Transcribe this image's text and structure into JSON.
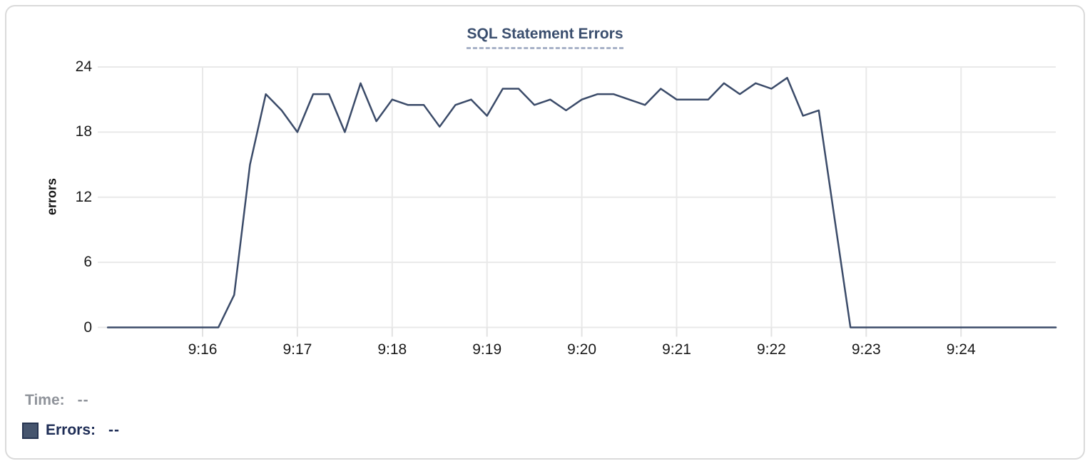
{
  "chart": {
    "title": "SQL Statement Errors",
    "y_axis_label": "errors"
  },
  "legend": {
    "time_label": "Time:",
    "time_value": "--",
    "errors_label": "Errors:",
    "errors_value": "--"
  },
  "colors": {
    "line": "#3b4b69",
    "title": "#3a4e6e",
    "title_underline": "#a8b2c8",
    "gridline": "#e9e9e9",
    "axis_tick": "#e2e2e2",
    "legend_swatch": "#46556e",
    "legend_time_text": "#8f939a",
    "legend_errors_text": "#1d2c55"
  },
  "chart_data": {
    "type": "line",
    "title": "SQL Statement Errors",
    "xlabel": "",
    "ylabel": "errors",
    "ylim": [
      0,
      24
    ],
    "y_ticks": [
      0,
      6,
      12,
      18,
      24
    ],
    "x_tick_labels": [
      "9:16",
      "9:17",
      "9:18",
      "9:19",
      "9:20",
      "9:21",
      "9:22",
      "9:23",
      "9:24"
    ],
    "x_start": "9:15:00",
    "x_end": "9:25:00",
    "interval_seconds": 10,
    "grid": true,
    "legend_position": "bottom-left",
    "series": [
      {
        "name": "Errors",
        "x": [
          "9:15:00",
          "9:15:10",
          "9:15:20",
          "9:15:30",
          "9:15:40",
          "9:15:50",
          "9:16:00",
          "9:16:10",
          "9:16:20",
          "9:16:30",
          "9:16:40",
          "9:16:50",
          "9:17:00",
          "9:17:10",
          "9:17:20",
          "9:17:30",
          "9:17:40",
          "9:17:50",
          "9:18:00",
          "9:18:10",
          "9:18:20",
          "9:18:30",
          "9:18:40",
          "9:18:50",
          "9:19:00",
          "9:19:10",
          "9:19:20",
          "9:19:30",
          "9:19:40",
          "9:19:50",
          "9:20:00",
          "9:20:10",
          "9:20:20",
          "9:20:30",
          "9:20:40",
          "9:20:50",
          "9:21:00",
          "9:21:10",
          "9:21:20",
          "9:21:30",
          "9:21:40",
          "9:21:50",
          "9:22:00",
          "9:22:10",
          "9:22:20",
          "9:22:30",
          "9:22:40",
          "9:22:50",
          "9:23:00",
          "9:23:10",
          "9:23:20",
          "9:23:30",
          "9:23:40",
          "9:23:50",
          "9:24:00",
          "9:24:10",
          "9:24:20",
          "9:24:30",
          "9:24:40",
          "9:24:50",
          "9:25:00"
        ],
        "values": [
          0,
          0,
          0,
          0,
          0,
          0,
          0,
          0,
          3,
          15,
          21.5,
          20,
          18,
          21.5,
          21.5,
          18,
          22.5,
          19,
          21,
          20.5,
          20.5,
          18.5,
          20.5,
          21,
          19.5,
          22,
          22,
          20.5,
          21,
          20,
          21,
          21.5,
          21.5,
          21,
          20.5,
          22,
          21,
          21,
          21,
          22.5,
          21.5,
          22.5,
          22,
          23,
          19.5,
          20,
          10,
          0,
          0,
          0,
          0,
          0,
          0,
          0,
          0,
          0,
          0,
          0,
          0,
          0,
          0
        ]
      }
    ]
  }
}
